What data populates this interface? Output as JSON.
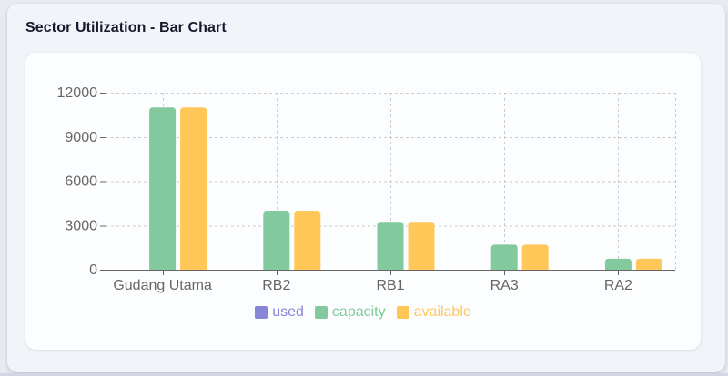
{
  "panel": {
    "title": "Sector Utilization - Bar Chart"
  },
  "chart_data": {
    "type": "bar",
    "title": "Sector Utilization - Bar Chart",
    "categories": [
      "Gudang Utama",
      "RB2",
      "RB1",
      "RA3",
      "RA2"
    ],
    "series": [
      {
        "name": "used",
        "color": "#8884d8",
        "values": [
          0,
          0,
          0,
          0,
          0
        ]
      },
      {
        "name": "capacity",
        "color": "#82ca9d",
        "values": [
          11000,
          4000,
          3250,
          1700,
          750
        ]
      },
      {
        "name": "available",
        "color": "#ffc658",
        "values": [
          11000,
          4000,
          3250,
          1700,
          750
        ]
      }
    ],
    "xlabel": "",
    "ylabel": "",
    "ylim": [
      0,
      12000
    ],
    "yticks": [
      0,
      3000,
      6000,
      9000,
      12000
    ],
    "grid": "dashed",
    "legend_position": "bottom",
    "colors": {
      "grid": "#cccccc",
      "axis": "#666666",
      "tick_text": "#666666"
    }
  }
}
